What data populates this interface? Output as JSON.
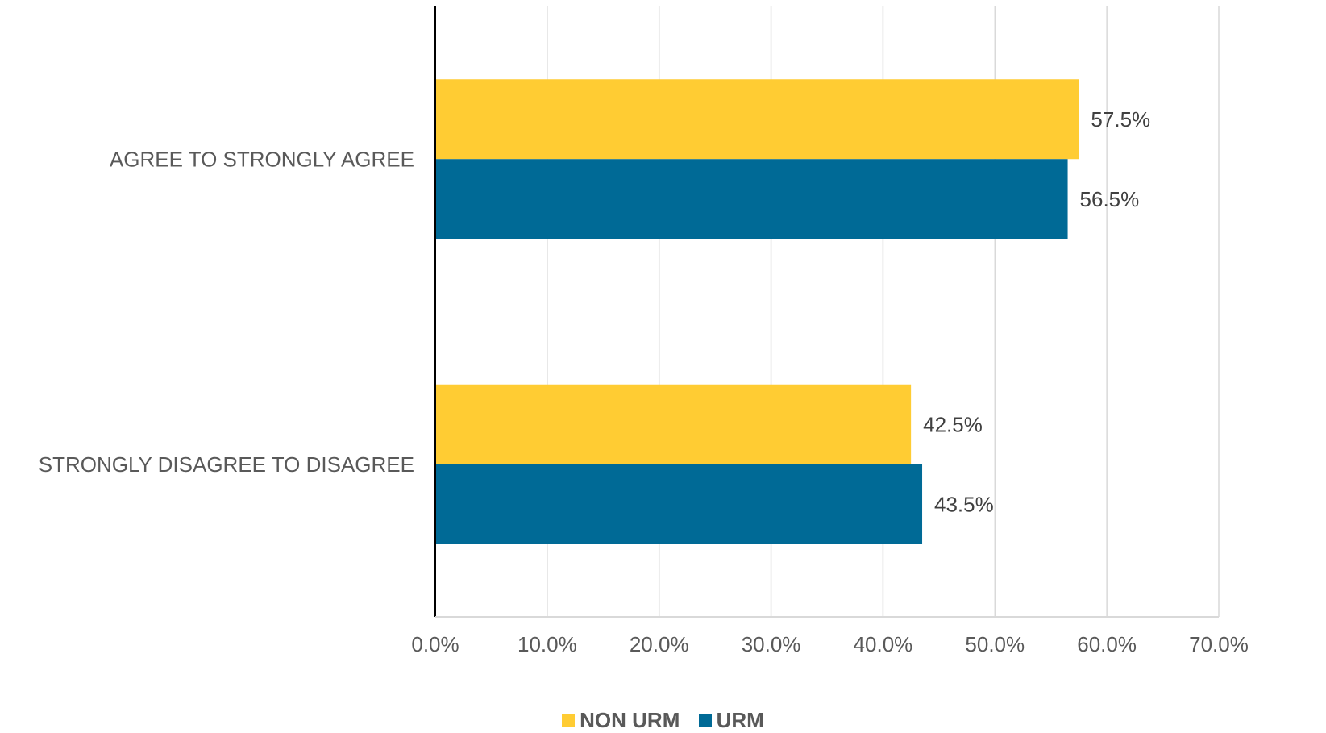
{
  "chart_data": {
    "type": "bar",
    "orientation": "horizontal",
    "categories": [
      "AGREE TO STRONGLY AGREE",
      "STRONGLY DISAGREE TO DISAGREE"
    ],
    "series": [
      {
        "name": "NON URM",
        "color": "#FFCC33",
        "values": [
          57.5,
          42.5
        ],
        "labels": [
          "57.5%",
          "42.5%"
        ]
      },
      {
        "name": "URM",
        "color": "#006A96",
        "values": [
          56.5,
          43.5
        ],
        "labels": [
          "56.5%",
          "43.5%"
        ]
      }
    ],
    "xlim": [
      0,
      70
    ],
    "xticks": [
      0,
      10,
      20,
      30,
      40,
      50,
      60,
      70
    ],
    "xtick_labels": [
      "0.0%",
      "10.0%",
      "20.0%",
      "30.0%",
      "40.0%",
      "50.0%",
      "60.0%",
      "70.0%"
    ],
    "grid": "vertical",
    "legend_position": "bottom",
    "title": "",
    "xlabel": "",
    "ylabel": ""
  }
}
